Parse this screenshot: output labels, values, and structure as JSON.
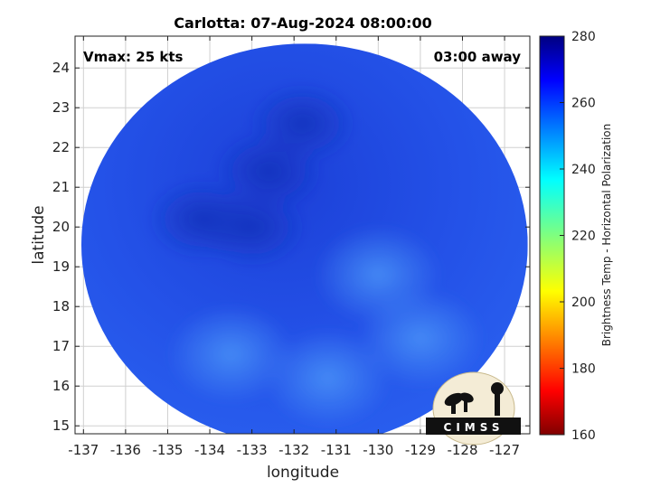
{
  "chart_data": {
    "type": "heatmap",
    "title": "Carlotta: 07-Aug-2024 08:00:00",
    "xlabel": "longitude",
    "ylabel": "latitude",
    "xlim": [
      -137.2,
      -126.4
    ],
    "ylim": [
      14.8,
      24.8
    ],
    "x_ticks": [
      -137,
      -136,
      -135,
      -134,
      -133,
      -132,
      -131,
      -130,
      -129,
      -128,
      -127
    ],
    "y_ticks": [
      15,
      16,
      17,
      18,
      19,
      20,
      21,
      22,
      23,
      24
    ],
    "grid": true,
    "annotations": {
      "vmax": "Vmax: 25 kts",
      "time_offset": "03:00 away"
    },
    "colorbar": {
      "label": "Brightness Temp - Horizontal Polarization",
      "range": [
        160,
        280
      ],
      "ticks": [
        280,
        260,
        240,
        220,
        200,
        180,
        160
      ],
      "colormap": "jet"
    },
    "swath": {
      "center_lon": -131.75,
      "center_lat": 19.55,
      "radius_deg": 5.3,
      "background_value": 259,
      "cold_features": [
        {
          "lon": -132.6,
          "lat": 21.4,
          "value": 266
        },
        {
          "lon": -131.8,
          "lat": 22.6,
          "value": 264
        },
        {
          "lon": -134.2,
          "lat": 20.2,
          "value": 263
        },
        {
          "lon": -133.0,
          "lat": 20.0,
          "value": 262
        }
      ],
      "warm_features": [
        {
          "lon": -130.0,
          "lat": 18.8,
          "value": 252
        },
        {
          "lon": -129.0,
          "lat": 17.2,
          "value": 253
        },
        {
          "lon": -131.2,
          "lat": 16.2,
          "value": 254
        },
        {
          "lon": -133.5,
          "lat": 16.8,
          "value": 256
        }
      ]
    }
  },
  "logo": {
    "name": "CIMSS",
    "text": "CIMSS"
  },
  "colors": {
    "background": "#ffffff",
    "axis": "#222222",
    "grid": "#d0d0d0",
    "swath_dark": "#1a3fd6",
    "swath_mid": "#2557ee",
    "swath_light": "#3f86f5"
  }
}
